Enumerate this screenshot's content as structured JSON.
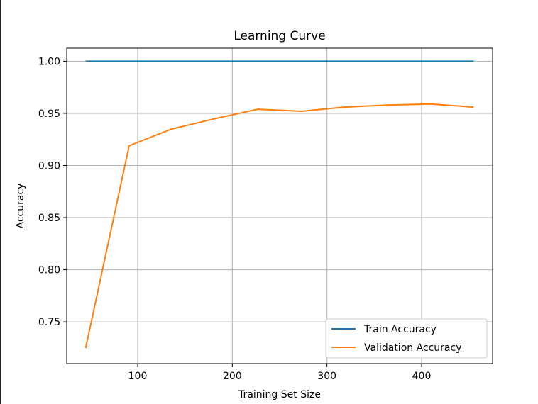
{
  "chart_data": {
    "type": "line",
    "title": "Learning Curve",
    "xlabel": "Training Set Size",
    "ylabel": "Accuracy",
    "xlim": [
      25,
      475
    ],
    "ylim": [
      0.71,
      1.0125
    ],
    "xticks": [
      100,
      200,
      300,
      400
    ],
    "yticks": [
      0.75,
      0.8,
      0.85,
      0.9,
      0.95,
      1.0
    ],
    "ytick_labels": [
      "0.75",
      "0.80",
      "0.85",
      "0.90",
      "0.95",
      "1.00"
    ],
    "grid": true,
    "legend_position": "lower-right",
    "x": [
      45,
      91,
      136,
      182,
      227,
      273,
      318,
      364,
      409,
      455
    ],
    "series": [
      {
        "name": "Train Accuracy",
        "color": "#1f77b4",
        "values": [
          1.0,
          1.0,
          1.0,
          1.0,
          1.0,
          1.0,
          1.0,
          1.0,
          1.0,
          1.0
        ]
      },
      {
        "name": "Validation Accuracy",
        "color": "#ff7f0e",
        "values": [
          0.725,
          0.919,
          0.935,
          0.945,
          0.954,
          0.952,
          0.956,
          0.958,
          0.959,
          0.956
        ]
      }
    ]
  }
}
